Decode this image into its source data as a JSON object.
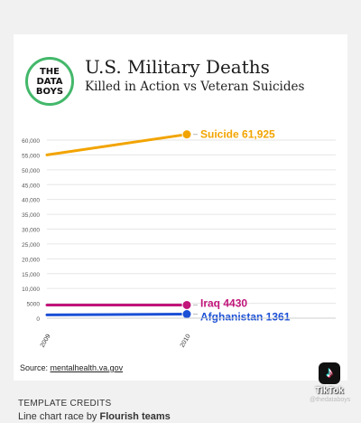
{
  "header": {
    "logo_line1": "THE",
    "logo_line2": "DATA",
    "logo_line3": "BOYS",
    "title": "U.S. Military Deaths",
    "subtitle": "Killed in Action vs Veteran Suicides"
  },
  "chart_data": {
    "type": "line",
    "x": [
      "2009",
      "2010"
    ],
    "ylim": [
      0,
      60000
    ],
    "yticks": [
      "0",
      "5000",
      "10,000",
      "15,000",
      "20,000",
      "25,000",
      "30,000",
      "35,000",
      "40,000",
      "45,000",
      "50,000",
      "55,000",
      "60,000"
    ],
    "ytick_values": [
      0,
      5000,
      10000,
      15000,
      20000,
      25000,
      30000,
      35000,
      40000,
      45000,
      50000,
      55000,
      60000
    ],
    "grid": true,
    "series": [
      {
        "name": "Suicide",
        "label": "Suicide 61,925",
        "values": [
          55000,
          61925
        ],
        "color": "#f2a400"
      },
      {
        "name": "Iraq",
        "label": "Iraq 4430",
        "values": [
          4430,
          4430
        ],
        "color": "#c1157a"
      },
      {
        "name": "Afghanistan",
        "label": "Afghanistan 1361",
        "values": [
          1100,
          1361
        ],
        "color": "#1a4fd6"
      }
    ]
  },
  "footer": {
    "source_prefix": "Source: ",
    "source_link": "mentalhealth.va.gov",
    "credits_head": "TEMPLATE CREDITS",
    "credits_text": "Line chart race by ",
    "credits_bold": "Flourish teams"
  },
  "watermark": {
    "icon": "tiktok-note-icon",
    "word": "TikTok",
    "handle": "@thedataboys"
  }
}
